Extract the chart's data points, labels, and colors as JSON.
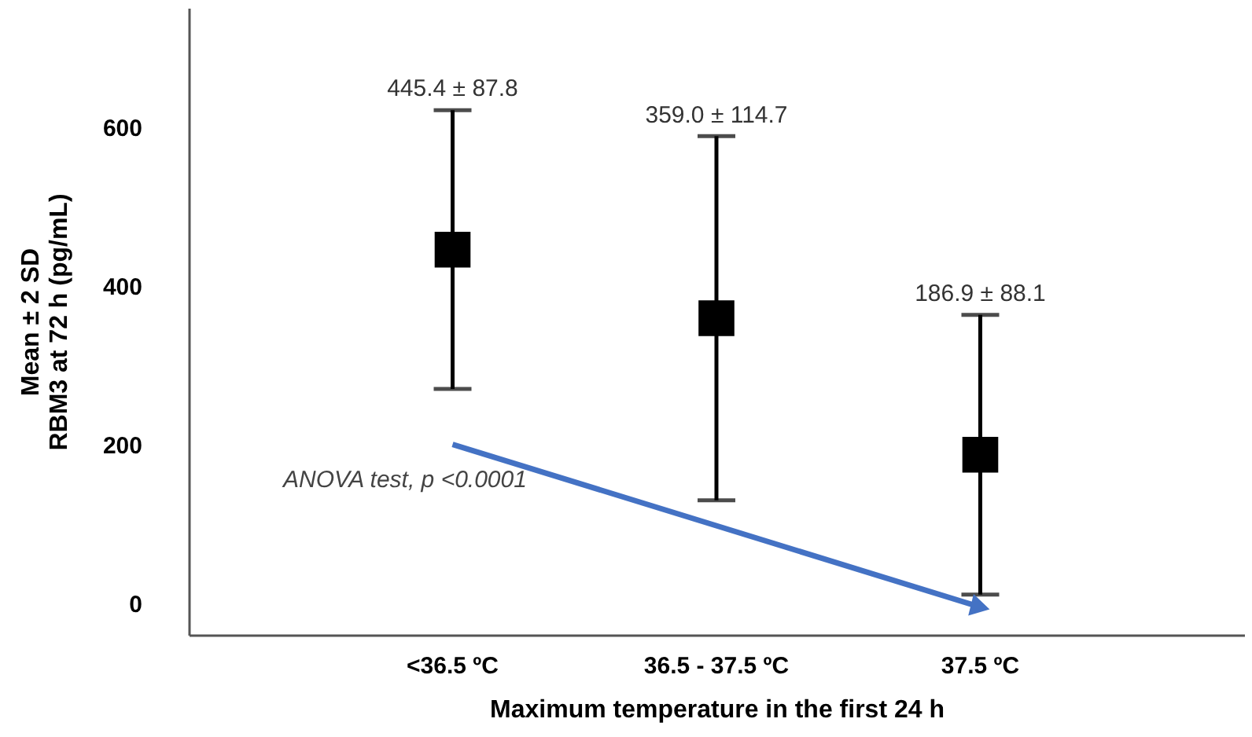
{
  "chart_data": {
    "type": "scatter",
    "xlabel": "Maximum temperature in the first 24 h",
    "ylabel": "Mean ± 2 SD\nRBM3 at 72 h (pg/mL)",
    "categories": [
      "<36.5 ºC",
      "36.5 - 37.5 ºC",
      "37.5 ºC"
    ],
    "series": [
      {
        "color": "#000000",
        "marker": "square",
        "values": [
          445.4,
          359.0,
          186.9
        ],
        "errors": [
          175.6,
          229.4,
          176.2
        ]
      },
      {
        "type": "line",
        "color": "#4472c4",
        "x": [
          "<36.5 ºC",
          "37.5 ºC"
        ],
        "values": [
          200,
          -5
        ]
      }
    ],
    "ylim": [
      -40,
      750
    ],
    "yticks": [
      0,
      200,
      400,
      600
    ],
    "grid": false,
    "annotations": [
      {
        "text": "445.4 ± 87.8",
        "x": "<36.5 ºC",
        "y": 621
      },
      {
        "text": "359.0 ± 114.7",
        "x": "36.5 - 37.5 ºC",
        "y": 588
      },
      {
        "text": "186.9 ± 88.1",
        "x": "37.5 ºC",
        "y": 363
      },
      "ANOVA test, p <0.0001"
    ]
  }
}
